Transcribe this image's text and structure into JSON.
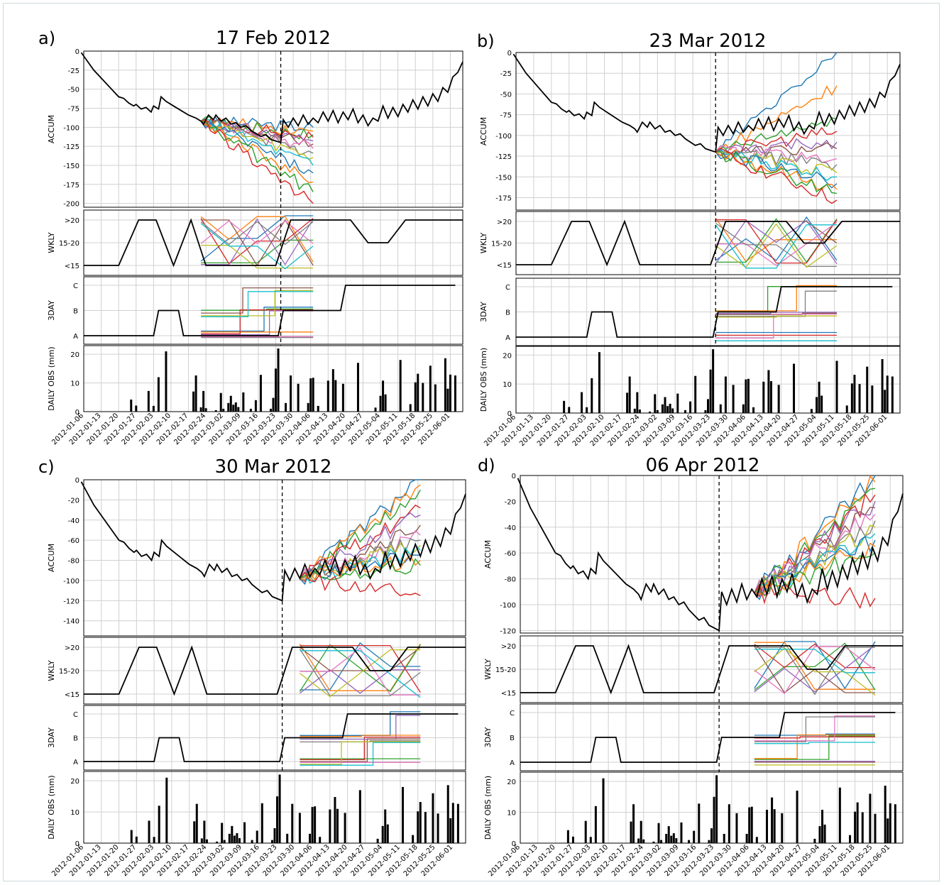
{
  "figure": {
    "x_tick_labels": [
      "2012-01-06",
      "2012-01-13",
      "2012-01-20",
      "2012-01-27",
      "2012-02-03",
      "2012-02-10",
      "2012-02-17",
      "2012-02-24",
      "2012-03-02",
      "2012-03-09",
      "2012-03-16",
      "2012-03-23",
      "2012-03-30",
      "2012-04-06",
      "2012-04-13",
      "2012-04-20",
      "2012-04-27",
      "2012-05-04",
      "2012-05-11",
      "2012-05-18",
      "2012-05-25",
      "2012-06-01"
    ],
    "ylabels": {
      "accum": "ACCUM",
      "wkly": "WKLY",
      "threeday": "3DAY",
      "daily": "DAILY OBS (mm)"
    },
    "wkly_ticks": [
      ">20",
      "15-20",
      "<15"
    ],
    "threeday_ticks": [
      "C",
      "B",
      "A"
    ],
    "daily_ticks": [
      "20",
      "10",
      "0"
    ],
    "ensemble_colors": [
      "#1f77b4",
      "#ff7f0e",
      "#2ca02c",
      "#d62728",
      "#9467bd",
      "#8c564b",
      "#e377c2",
      "#7f7f7f",
      "#bcbd22",
      "#17becf"
    ],
    "observed_color": "#000000",
    "forecast_line_style": "dashed"
  },
  "chart_data": [
    {
      "panel_label": "a)",
      "title": "17 Feb 2012",
      "type": "line",
      "forecast_date": "2012-03-25",
      "accum_ylim": [
        -205,
        0
      ],
      "accum_ticks": [
        "0",
        "-25",
        "-50",
        "-75",
        "-100",
        "-125",
        "-150",
        "-175",
        "-200"
      ],
      "accum_tick_values": [
        0,
        -25,
        -50,
        -75,
        -100,
        -125,
        -150,
        -175,
        -200
      ],
      "ensemble_start": "2012-02-22",
      "ensemble_end": "2012-04-07",
      "ensemble_accum_end": [
        -100,
        -105,
        -110,
        -113,
        -118,
        -122,
        -128,
        -134,
        -140,
        -150,
        -160,
        -172,
        -185,
        -200
      ]
    },
    {
      "panel_label": "b)",
      "title": "23 Mar 2012",
      "type": "line",
      "forecast_date": "2012-03-25",
      "accum_ylim": [
        -190,
        0
      ],
      "accum_ticks": [
        "0",
        "-25",
        "-50",
        "-75",
        "-100",
        "-125",
        "-150",
        "-175"
      ],
      "accum_tick_values": [
        0,
        -25,
        -50,
        -75,
        -100,
        -125,
        -150,
        -175
      ],
      "ensemble_start": "2012-03-25",
      "ensemble_end": "2012-05-12",
      "ensemble_accum_end": [
        0,
        -40,
        -80,
        -95,
        -108,
        -116,
        -128,
        -135,
        -145,
        -150,
        -158,
        -165,
        -170,
        -178
      ]
    },
    {
      "panel_label": "c)",
      "title": "30 Mar 2012",
      "type": "line",
      "forecast_date": "2012-03-25",
      "accum_ylim": [
        -155,
        0
      ],
      "accum_ticks": [
        "0",
        "-20",
        "-40",
        "-60",
        "-80",
        "-100",
        "-120",
        "-140"
      ],
      "accum_tick_values": [
        0,
        -20,
        -40,
        -60,
        -80,
        -100,
        -120,
        -140
      ],
      "ensemble_start": "2012-04-01",
      "ensemble_end": "2012-05-19",
      "ensemble_accum_end": [
        0,
        -5,
        -10,
        -28,
        -35,
        -45,
        -55,
        -60,
        -65,
        -70,
        -75,
        -80,
        -85,
        -115
      ]
    },
    {
      "panel_label": "d)",
      "title": "06 Apr 2012",
      "type": "line",
      "forecast_date": "2012-03-25",
      "accum_ylim": [
        -122,
        0
      ],
      "accum_ticks": [
        "0",
        "-20",
        "-40",
        "-60",
        "-80",
        "-100",
        "-120"
      ],
      "accum_tick_values": [
        0,
        -20,
        -40,
        -60,
        -80,
        -100,
        -120
      ],
      "ensemble_start": "2012-04-08",
      "ensemble_end": "2012-05-26",
      "ensemble_accum_end": [
        0,
        -5,
        -10,
        -15,
        -20,
        -25,
        -30,
        -35,
        -40,
        -45,
        -50,
        -55,
        -60,
        -95
      ]
    }
  ],
  "shared_series": {
    "daily_obs": [
      [
        20,
        4.2
      ],
      [
        22,
        2.1
      ],
      [
        27,
        7.2
      ],
      [
        29,
        2
      ],
      [
        31,
        12
      ],
      [
        34,
        21
      ],
      [
        45,
        7
      ],
      [
        46,
        12.6
      ],
      [
        48,
        1.5
      ],
      [
        49,
        7.2
      ],
      [
        50,
        1.2
      ],
      [
        54,
        0.5
      ],
      [
        56,
        6.5
      ],
      [
        57,
        1
      ],
      [
        59,
        3
      ],
      [
        60,
        5.5
      ],
      [
        61,
        2.4
      ],
      [
        62,
        3.2
      ],
      [
        63,
        1.6
      ],
      [
        65,
        6.7
      ],
      [
        68,
        1
      ],
      [
        70,
        4
      ],
      [
        72,
        12.8
      ],
      [
        76,
        1
      ],
      [
        77,
        4.8
      ],
      [
        78,
        15
      ],
      [
        79,
        22
      ],
      [
        82,
        3
      ],
      [
        84,
        12.6
      ],
      [
        87,
        9.7
      ],
      [
        91,
        3
      ],
      [
        92,
        11.6
      ],
      [
        93,
        11.8
      ],
      [
        95,
        2
      ],
      [
        99,
        10.8
      ],
      [
        101,
        14.8
      ],
      [
        102,
        11
      ],
      [
        105,
        9.7
      ],
      [
        111,
        17
      ],
      [
        118,
        1.4
      ],
      [
        120,
        5.5
      ],
      [
        121,
        10.8
      ],
      [
        122,
        6
      ],
      [
        128,
        18
      ],
      [
        132,
        2.6
      ],
      [
        134,
        10.2
      ],
      [
        135,
        13.2
      ],
      [
        137,
        10
      ],
      [
        140,
        16
      ],
      [
        142,
        9.5
      ],
      [
        146,
        18.6
      ],
      [
        147,
        8
      ],
      [
        148,
        12.9
      ],
      [
        150,
        12.6
      ]
    ],
    "accum_obs": [
      [
        0,
        -2
      ],
      [
        5,
        -25
      ],
      [
        15,
        -60
      ],
      [
        17,
        -62
      ],
      [
        19,
        -68
      ],
      [
        21,
        -72
      ],
      [
        22,
        -70
      ],
      [
        24,
        -76
      ],
      [
        26,
        -74
      ],
      [
        28,
        -80
      ],
      [
        29,
        -72
      ],
      [
        31,
        -76
      ],
      [
        32,
        -60
      ],
      [
        34,
        -66
      ],
      [
        37,
        -72
      ],
      [
        40,
        -78
      ],
      [
        43,
        -84
      ],
      [
        46,
        -88
      ],
      [
        48,
        -92
      ],
      [
        49,
        -96
      ],
      [
        51,
        -84
      ],
      [
        53,
        -90
      ],
      [
        54,
        -84
      ],
      [
        56,
        -92
      ],
      [
        58,
        -88
      ],
      [
        60,
        -96
      ],
      [
        62,
        -94
      ],
      [
        64,
        -100
      ],
      [
        66,
        -98
      ],
      [
        68,
        -104
      ],
      [
        70,
        -108
      ],
      [
        72,
        -112
      ],
      [
        74,
        -110
      ],
      [
        76,
        -116
      ],
      [
        78,
        -118
      ],
      [
        80,
        -120
      ],
      [
        81,
        -90
      ],
      [
        83,
        -100
      ],
      [
        85,
        -88
      ],
      [
        87,
        -98
      ],
      [
        89,
        -84
      ],
      [
        91,
        -96
      ],
      [
        93,
        -88
      ],
      [
        95,
        -94
      ],
      [
        97,
        -80
      ],
      [
        99,
        -92
      ],
      [
        101,
        -78
      ],
      [
        103,
        -94
      ],
      [
        105,
        -80
      ],
      [
        107,
        -90
      ],
      [
        109,
        -76
      ],
      [
        111,
        -94
      ],
      [
        113,
        -84
      ],
      [
        115,
        -98
      ],
      [
        117,
        -88
      ],
      [
        119,
        -92
      ],
      [
        121,
        -72
      ],
      [
        123,
        -88
      ],
      [
        125,
        -74
      ],
      [
        127,
        -86
      ],
      [
        129,
        -70
      ],
      [
        131,
        -80
      ],
      [
        133,
        -64
      ],
      [
        135,
        -76
      ],
      [
        137,
        -60
      ],
      [
        139,
        -72
      ],
      [
        141,
        -56
      ],
      [
        143,
        -66
      ],
      [
        145,
        -48
      ],
      [
        147,
        -54
      ],
      [
        149,
        -34
      ],
      [
        151,
        -28
      ],
      [
        153,
        -14
      ]
    ],
    "wkly_obs": [
      [
        1,
        0
      ],
      [
        15,
        0
      ],
      [
        23,
        2
      ],
      [
        30,
        2
      ],
      [
        37,
        0
      ],
      [
        44,
        2
      ],
      [
        50,
        0
      ],
      [
        59,
        0
      ],
      [
        78,
        0
      ],
      [
        84,
        2
      ],
      [
        108,
        2
      ],
      [
        115,
        1
      ],
      [
        123,
        1
      ],
      [
        130,
        2
      ],
      [
        153,
        2
      ]
    ],
    "threeday_obs": [
      [
        1,
        0
      ],
      [
        29,
        0
      ],
      [
        31,
        1
      ],
      [
        39,
        1
      ],
      [
        41,
        0
      ],
      [
        79,
        0
      ],
      [
        81,
        1
      ],
      [
        104,
        1
      ],
      [
        106,
        2
      ],
      [
        150,
        2
      ]
    ]
  }
}
